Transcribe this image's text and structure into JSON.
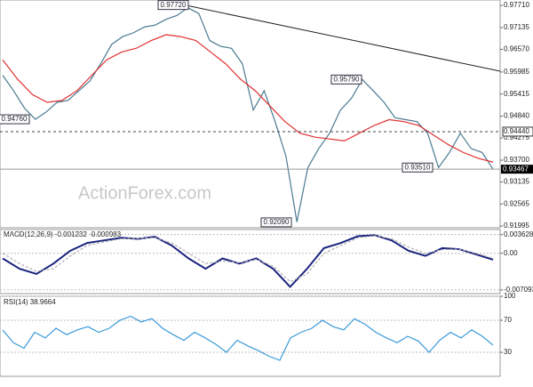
{
  "chart_data": [
    {
      "type": "line",
      "watermark": "ActionForex.com",
      "ylim": [
        0.9195,
        0.9785
      ],
      "yticks": [
        {
          "value": 0.9771,
          "label": "0.97710"
        },
        0.97135,
        {
          "value": 0.9657,
          "label": "0.96570"
        },
        0.95985,
        0.95415,
        {
          "value": 0.9484,
          "label": "0.94840"
        },
        0.94275,
        {
          "value": 0.937,
          "label": "0.93700"
        },
        0.93135,
        0.92565,
        0.91995
      ],
      "series": [
        {
          "color": "#4a7a90",
          "values": [
            0.959,
            0.955,
            0.9505,
            0.9476,
            0.9495,
            0.952,
            0.9525,
            0.955,
            0.9575,
            0.962,
            0.967,
            0.969,
            0.97,
            0.9715,
            0.972,
            0.9735,
            0.9745,
            0.9765,
            0.975,
            0.968,
            0.9665,
            0.966,
            0.962,
            0.95,
            0.955,
            0.947,
            0.938,
            0.921,
            0.935,
            0.94,
            0.944,
            0.95,
            0.953,
            0.9579,
            0.955,
            0.952,
            0.948,
            0.9475,
            0.947,
            0.944,
            0.9351,
            0.939,
            0.944,
            0.94,
            0.939,
            0.93467
          ]
        },
        {
          "color": "#e03030",
          "values": [
            0.963,
            0.958,
            0.954,
            0.952,
            0.9525,
            0.955,
            0.959,
            0.963,
            0.965,
            0.966,
            0.968,
            0.9695,
            0.969,
            0.968,
            0.965,
            0.962,
            0.958,
            0.955,
            0.951,
            0.947,
            0.944,
            0.943,
            0.9425,
            0.942,
            0.944,
            0.946,
            0.9475,
            0.947,
            0.946,
            0.9435,
            0.941,
            0.939,
            0.9375,
            0.9365
          ]
        }
      ],
      "levels": [
        {
          "value": 0.9444,
          "label": "0.94440"
        }
      ],
      "last": 0.93467,
      "annotations": [
        {
          "value": 0.9772,
          "label": "0.97720"
        },
        {
          "value": 0.9579,
          "label": "0.95790"
        },
        {
          "value": 0.9476,
          "label": "0.94760"
        },
        {
          "value": 0.9351,
          "label": "0.93510"
        },
        {
          "value": 0.9209,
          "label": "0.92090"
        }
      ]
    },
    {
      "type": "line",
      "title": "MACD(12,26,9) -0.001232 -0.000983",
      "ylim": [
        -0.0078,
        0.0046
      ],
      "yticks": [
        0.003628,
        {
          "value": 0,
          "label": "0.00"
        },
        -0.007093
      ],
      "series": [
        {
          "color": "#1a237e",
          "values": [
            -0.001,
            -0.003,
            -0.004,
            -0.002,
            0.0005,
            0.002,
            0.0025,
            0.003,
            0.0028,
            0.0032,
            0.0015,
            -0.001,
            -0.003,
            -0.001,
            -0.002,
            -0.001,
            -0.003,
            -0.0065,
            -0.003,
            0.001,
            0.002,
            0.0033,
            0.0035,
            0.0025,
            0.0005,
            -0.0005,
            0.001,
            0.0008,
            -0.0002,
            -0.001232
          ]
        },
        {
          "color": "#b0b0b0",
          "values": [
            0.0,
            -0.002,
            -0.0035,
            -0.003,
            -0.0005,
            0.0015,
            0.0022,
            0.0028,
            0.0029,
            0.003,
            0.002,
            0.0,
            -0.002,
            -0.0015,
            -0.0018,
            -0.0012,
            -0.0025,
            -0.0055,
            -0.004,
            0.0,
            0.0015,
            0.003,
            0.0034,
            0.0028,
            0.0012,
            0.0,
            0.0007,
            0.0008,
            0.0,
            -0.000983
          ]
        }
      ]
    },
    {
      "type": "line",
      "title": "RSI(14) 38.9664",
      "ylim": [
        0,
        100
      ],
      "yticks": [
        100,
        70,
        30
      ],
      "series": [
        {
          "color": "#3a9ad9",
          "values": [
            58,
            42,
            35,
            55,
            48,
            60,
            52,
            58,
            62,
            55,
            60,
            70,
            75,
            68,
            72,
            60,
            52,
            45,
            55,
            48,
            40,
            30,
            45,
            38,
            32,
            25,
            20,
            48,
            55,
            60,
            70,
            62,
            58,
            72,
            65,
            55,
            48,
            42,
            50,
            44,
            30,
            45,
            55,
            48,
            58,
            50,
            38.9664
          ]
        }
      ]
    }
  ]
}
